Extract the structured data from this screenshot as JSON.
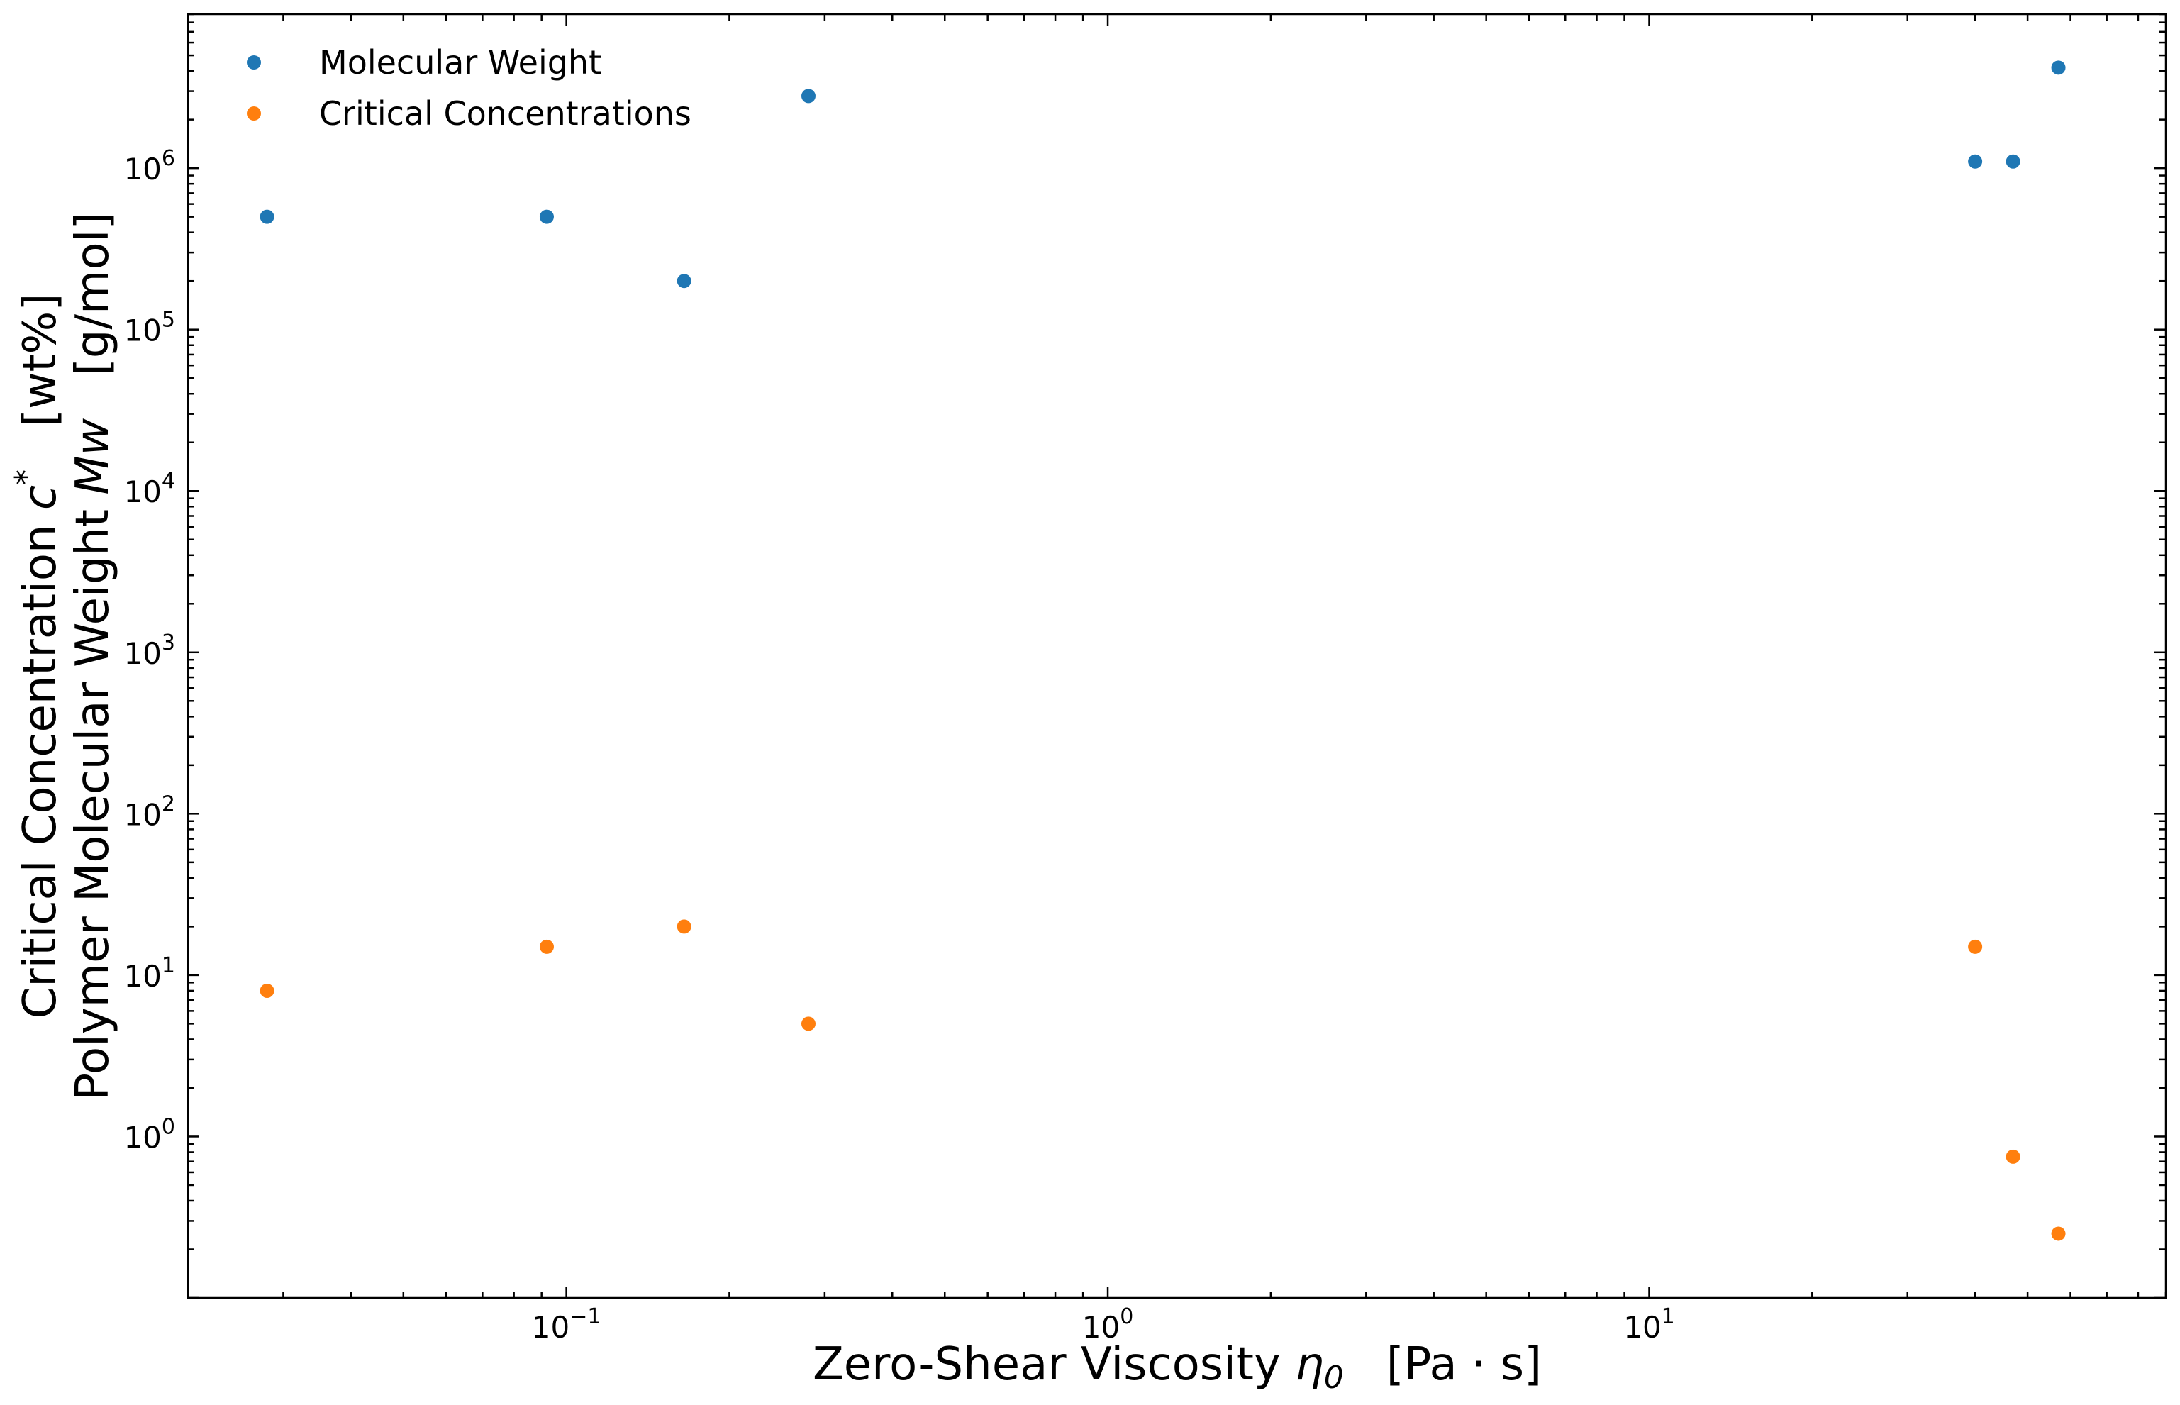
{
  "chart_data": {
    "type": "scatter",
    "xscale": "log",
    "yscale": "log",
    "xlim": [
      0.02,
      90
    ],
    "ylim": [
      0.1,
      9000000
    ],
    "grid": false,
    "legend_position": "top-left",
    "xlabel": {
      "main": "Zero-Shear Viscosity ",
      "sym": "η",
      "sub": "0",
      "unit": "[Pa · s]"
    },
    "ylabel": {
      "line1_main": "Critical Concentration ",
      "line1_sym": "c",
      "line1_sup": "*",
      "line1_unit": "[wt%]",
      "line2_main": "Polymer Molecular Weight ",
      "line2_sym": "Mw",
      "line2_unit": "[g/mol]"
    },
    "x_ticks": [
      {
        "value": 0.1,
        "base": "10",
        "exp": "−1"
      },
      {
        "value": 1,
        "base": "10",
        "exp": "0"
      },
      {
        "value": 10,
        "base": "10",
        "exp": "1"
      }
    ],
    "y_ticks": [
      {
        "value": 1,
        "base": "10",
        "exp": "0"
      },
      {
        "value": 10,
        "base": "10",
        "exp": "1"
      },
      {
        "value": 100,
        "base": "10",
        "exp": "2"
      },
      {
        "value": 1000,
        "base": "10",
        "exp": "3"
      },
      {
        "value": 10000,
        "base": "10",
        "exp": "4"
      },
      {
        "value": 100000,
        "base": "10",
        "exp": "5"
      },
      {
        "value": 1000000,
        "base": "10",
        "exp": "6"
      }
    ],
    "series": [
      {
        "name": "Molecular Weight",
        "color": "#1f77b4",
        "points": [
          {
            "x": 0.028,
            "y": 500000
          },
          {
            "x": 0.092,
            "y": 500000
          },
          {
            "x": 0.165,
            "y": 200000
          },
          {
            "x": 0.28,
            "y": 2800000
          },
          {
            "x": 40,
            "y": 1100000
          },
          {
            "x": 47,
            "y": 1100000
          },
          {
            "x": 57,
            "y": 4200000
          }
        ]
      },
      {
        "name": "Critical Concentrations",
        "color": "#ff7f0e",
        "points": [
          {
            "x": 0.028,
            "y": 8
          },
          {
            "x": 0.092,
            "y": 15
          },
          {
            "x": 0.165,
            "y": 20
          },
          {
            "x": 0.28,
            "y": 5
          },
          {
            "x": 40,
            "y": 15
          },
          {
            "x": 47,
            "y": 0.75
          },
          {
            "x": 57,
            "y": 0.25
          }
        ]
      }
    ]
  }
}
